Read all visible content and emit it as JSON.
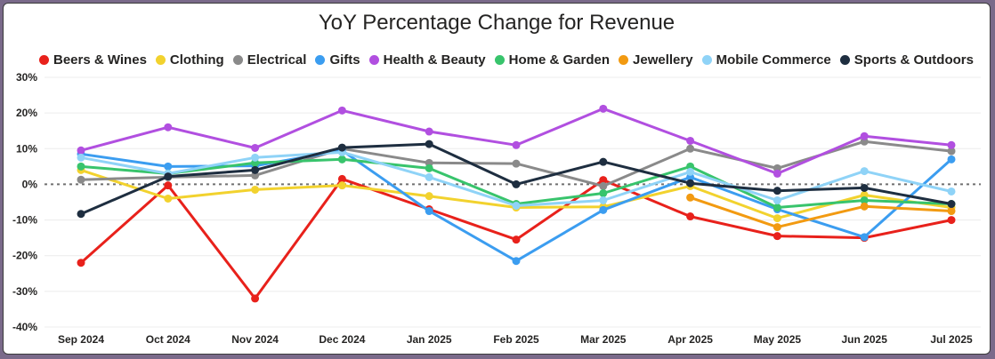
{
  "chart_data": {
    "type": "line",
    "title": "YoY Percentage Change for Revenue",
    "xlabel": "",
    "ylabel": "",
    "categories": [
      "Sep 2024",
      "Oct 2024",
      "Nov 2024",
      "Dec 2024",
      "Jan 2025",
      "Feb 2025",
      "Mar 2025",
      "Apr 2025",
      "May 2025",
      "Jun 2025",
      "Jul 2025"
    ],
    "ylim": [
      -0.4,
      0.3
    ],
    "yticks": [
      -0.4,
      -0.3,
      -0.2,
      -0.1,
      0.0,
      0.1,
      0.2,
      0.3
    ],
    "ytick_labels": [
      "-40%",
      "-30%",
      "-20%",
      "-10%",
      "0%",
      "10%",
      "20%",
      "30%"
    ],
    "grid": "horizontal",
    "zero_line": "dotted",
    "legend_position": "top",
    "series": [
      {
        "name": "Beers & Wines",
        "color": "#E8211B",
        "values": [
          -0.22,
          -0.003,
          -0.32,
          0.015,
          -0.07,
          -0.155,
          0.012,
          -0.09,
          -0.145,
          -0.15,
          -0.1
        ]
      },
      {
        "name": "Clothing",
        "color": "#F2D22E",
        "values": [
          0.04,
          -0.04,
          -0.015,
          -0.003,
          -0.033,
          -0.065,
          -0.063,
          -0.005,
          -0.095,
          -0.03,
          -0.065
        ]
      },
      {
        "name": "Electrical",
        "color": "#8A8A8A",
        "values": [
          0.013,
          0.02,
          0.025,
          0.1,
          0.06,
          0.058,
          -0.005,
          0.1,
          0.045,
          0.12,
          0.093
        ]
      },
      {
        "name": "Gifts",
        "color": "#3B9DF0",
        "values": [
          0.085,
          0.05,
          0.052,
          0.095,
          -0.075,
          -0.215,
          -0.072,
          0.02,
          -0.07,
          -0.148,
          0.07
        ]
      },
      {
        "name": "Health & Beauty",
        "color": "#B14FE0",
        "values": [
          0.095,
          0.16,
          0.102,
          0.207,
          0.148,
          0.11,
          0.212,
          0.122,
          0.03,
          0.135,
          0.11
        ]
      },
      {
        "name": "Home & Garden",
        "color": "#38C46C",
        "values": [
          0.05,
          0.03,
          0.06,
          0.07,
          0.045,
          -0.055,
          -0.025,
          0.05,
          -0.065,
          -0.045,
          -0.055
        ]
      },
      {
        "name": "Jewellery",
        "color": "#F29A11",
        "values": [
          null,
          null,
          null,
          null,
          null,
          null,
          null,
          -0.037,
          -0.12,
          -0.062,
          -0.075
        ]
      },
      {
        "name": "Mobile Commerce",
        "color": "#8FD3F7",
        "values": [
          0.075,
          0.03,
          0.075,
          0.09,
          0.02,
          -0.06,
          -0.045,
          0.035,
          -0.045,
          0.037,
          -0.02
        ]
      },
      {
        "name": "Sports & Outdoors",
        "color": "#1E2E40",
        "values": [
          -0.083,
          0.022,
          0.04,
          0.103,
          0.113,
          0.0,
          0.063,
          0.003,
          -0.018,
          -0.01,
          -0.055
        ]
      }
    ]
  }
}
